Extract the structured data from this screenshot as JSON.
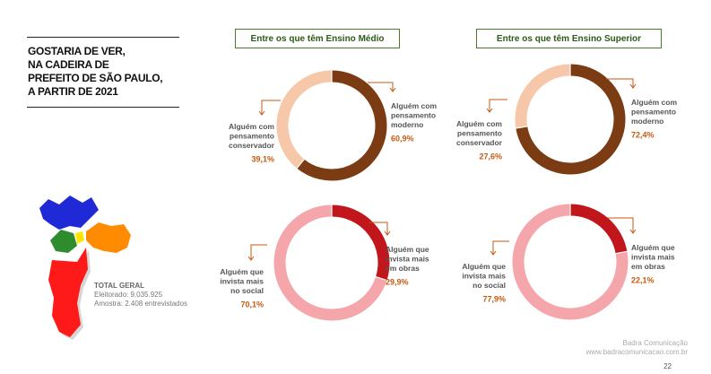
{
  "title": "GOSTARIA DE VER,\nNA CADEIRA DE\nPREFEITO DE SÃO PAULO,\nA PARTIR DE 2021",
  "columns": [
    "Entre os que têm Ensino Médio",
    "Entre os que têm Ensino Superior"
  ],
  "chart_data": [
    {
      "type": "pie",
      "group": "Entre os que têm Ensino Médio",
      "slices": [
        {
          "label": "Alguém com pensamento moderno",
          "lines": [
            "Alguém com",
            "pensamento",
            "moderno"
          ],
          "value": 60.9,
          "display": "60,9%",
          "color": "#7b3c13"
        },
        {
          "label": "Alguém com pensamento conservador",
          "lines": [
            "Alguém com",
            "pensamento",
            "conservador"
          ],
          "value": 39.1,
          "display": "39,1%",
          "color": "#f6c8a9"
        }
      ]
    },
    {
      "type": "pie",
      "group": "Entre os que têm Ensino Superior",
      "slices": [
        {
          "label": "Alguém com pensamento moderno",
          "lines": [
            "Alguém com",
            "pensamento",
            "moderno"
          ],
          "value": 72.4,
          "display": "72,4%",
          "color": "#7b3c13"
        },
        {
          "label": "Alguém com pensamento conservador",
          "lines": [
            "Alguém com",
            "pensamento",
            "conservador"
          ],
          "value": 27.6,
          "display": "27,6%",
          "color": "#f6c8a9"
        }
      ]
    },
    {
      "type": "pie",
      "group": "Entre os que têm Ensino Médio",
      "slices": [
        {
          "label": "Alguém que invista mais em obras",
          "lines": [
            "Alguém que",
            "invista mais",
            "em obras"
          ],
          "value": 29.9,
          "display": "29,9%",
          "color": "#c0161c"
        },
        {
          "label": "Alguém que invista mais no social",
          "lines": [
            "Alguém que",
            "invista mais",
            "no social"
          ],
          "value": 70.1,
          "display": "70,1%",
          "color": "#f4a6ab"
        }
      ]
    },
    {
      "type": "pie",
      "group": "Entre os que têm Ensino Superior",
      "slices": [
        {
          "label": "Alguém que invista mais em obras",
          "lines": [
            "Alguém que",
            "invista mais",
            "em obras"
          ],
          "value": 22.1,
          "display": "22,1%",
          "color": "#c0161c"
        },
        {
          "label": "Alguém que invista mais no social",
          "lines": [
            "Alguém que",
            "invista mais",
            "no social"
          ],
          "value": 77.9,
          "display": "77,9%",
          "color": "#f4a6ab"
        }
      ]
    }
  ],
  "value_color": "#c55a11",
  "totals": {
    "heading": "TOTAL GERAL",
    "electorate": "Eleitorado: 9.035.925",
    "sample": "Amostra: 2.408 entrevistados"
  },
  "map_colors": [
    "#1f29d6",
    "#ff8c00",
    "#2e8b2e",
    "#ffe600",
    "#ff1a1a"
  ],
  "footer": {
    "company": "Badra Comunicação",
    "url": "www.badracomunicacao.com.br"
  },
  "page_number": "22"
}
